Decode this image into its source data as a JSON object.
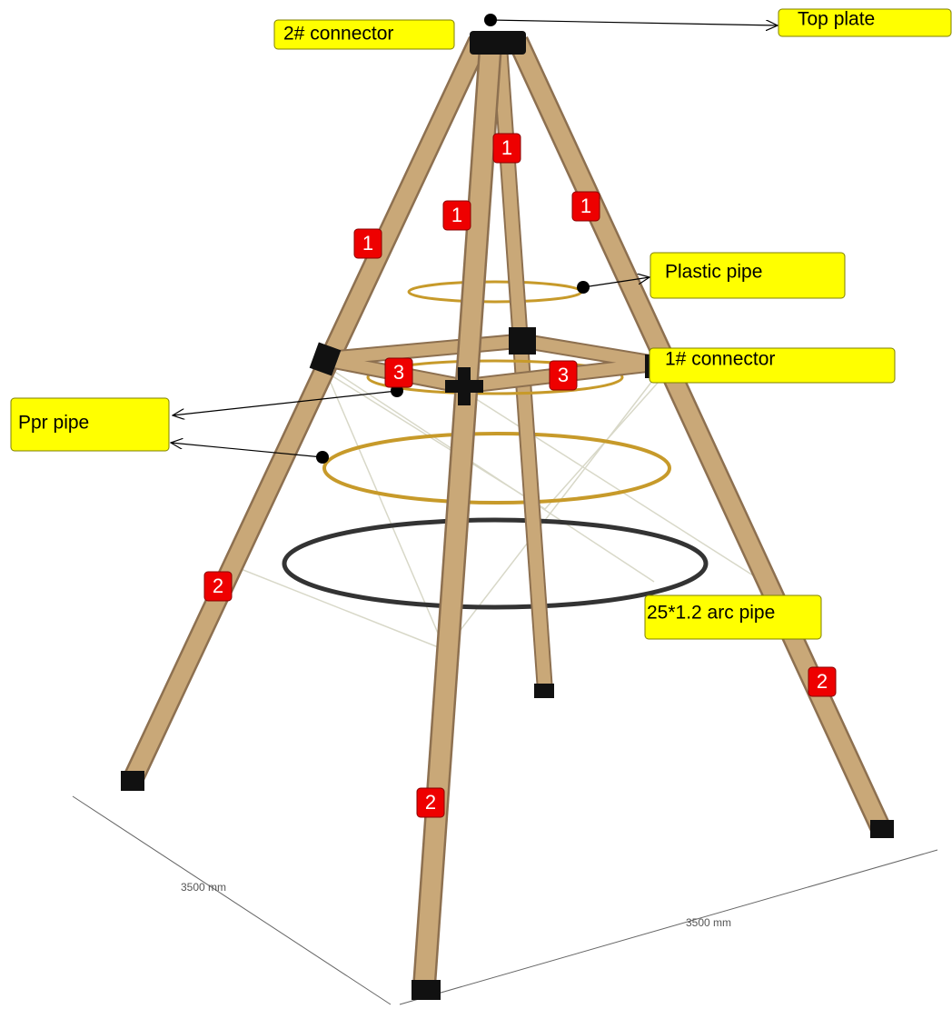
{
  "labels": {
    "connector2": "2# connector",
    "top_plate": "Top plate",
    "plastic_pipe": "Plastic pipe",
    "connector1": "1# connector",
    "ppr_pipe": "Ppr pipe",
    "arc_pipe": "25*1.2 arc pipe"
  },
  "badges": [
    "1",
    "1",
    "1",
    "1",
    "3",
    "3",
    "2",
    "2",
    "2"
  ],
  "dimensions": [
    "3500 mm",
    "3500 mm"
  ]
}
